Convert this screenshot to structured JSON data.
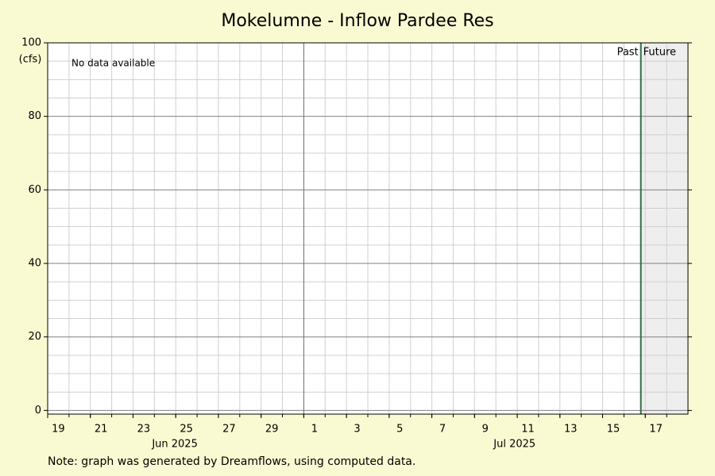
{
  "chart_data": {
    "type": "line",
    "title": "Mokelumne - Inflow Pardee Res",
    "y_label": "(cfs)",
    "annotation": "No data available",
    "past_label": "Past",
    "future_label": "Future",
    "note": "Note: graph was generated by Dreamflows, using computed data.",
    "series": [],
    "xlim": [
      "2025-06-19",
      "2025-07-19"
    ],
    "now": "2025-07-16T19:00",
    "ylim": [
      -1,
      100
    ],
    "yticks": [
      0,
      20,
      40,
      60,
      80,
      100
    ],
    "xticks": [
      {
        "value": "2025-06-19",
        "label": "19"
      },
      {
        "value": "2025-06-21",
        "label": "21"
      },
      {
        "value": "2025-06-23",
        "label": "23"
      },
      {
        "value": "2025-06-25",
        "label": "25"
      },
      {
        "value": "2025-06-27",
        "label": "27"
      },
      {
        "value": "2025-06-29",
        "label": "29"
      },
      {
        "value": "2025-07-01",
        "label": "1"
      },
      {
        "value": "2025-07-03",
        "label": "3"
      },
      {
        "value": "2025-07-05",
        "label": "5"
      },
      {
        "value": "2025-07-07",
        "label": "7"
      },
      {
        "value": "2025-07-09",
        "label": "9"
      },
      {
        "value": "2025-07-11",
        "label": "11"
      },
      {
        "value": "2025-07-13",
        "label": "13"
      },
      {
        "value": "2025-07-15",
        "label": "15"
      },
      {
        "value": "2025-07-17",
        "label": "17"
      }
    ],
    "month_labels": [
      {
        "value": "2025-06-24T23:00",
        "label": "Jun 2025"
      },
      {
        "value": "2025-07-10T21:00",
        "label": "Jul 2025"
      }
    ],
    "grid": true,
    "text_color": "#e8141c",
    "future_shade": "#eeeeee",
    "now_line_color": "#2e6b4a"
  }
}
